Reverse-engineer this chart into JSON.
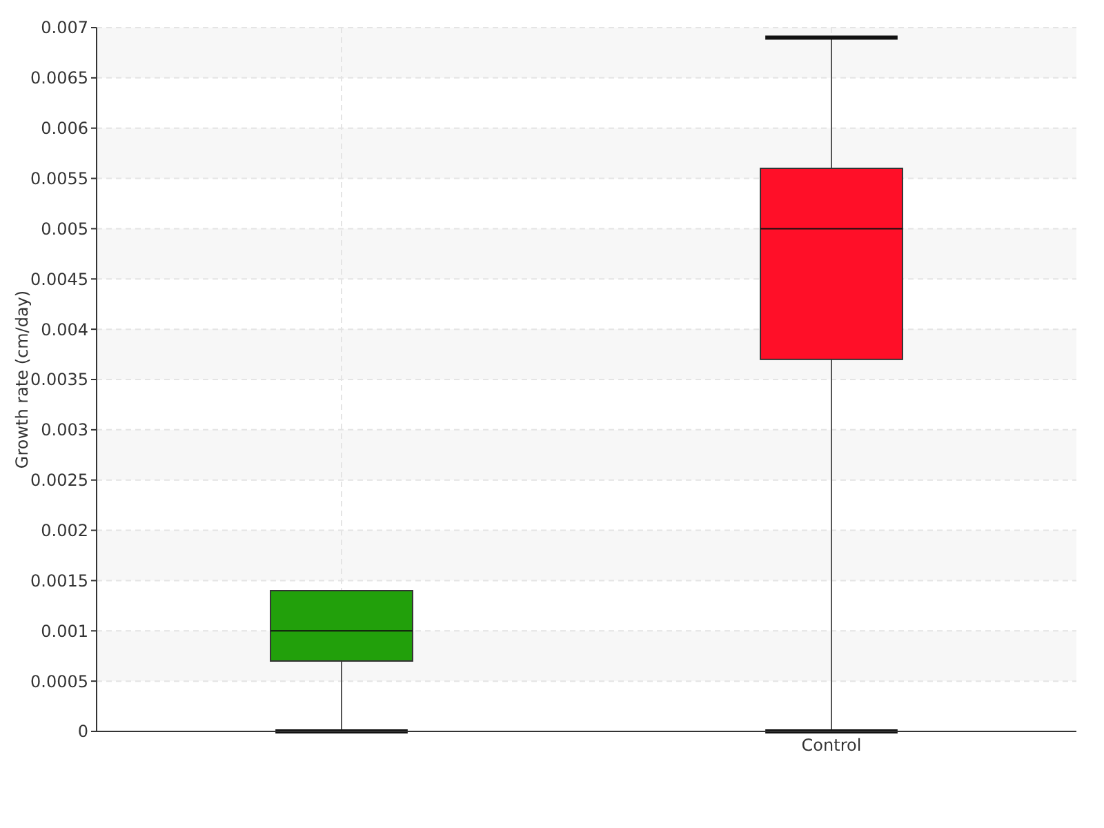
{
  "chart_data": {
    "type": "box",
    "ylabel": "Growth rate (cm/day)",
    "categories": [
      null,
      "Control"
    ],
    "colors": [
      "#22a00b",
      "#ff0f28"
    ],
    "boxes": [
      {
        "low": 0,
        "q1": 0.0007,
        "median": 0.001,
        "q3": 0.0014,
        "high": 0.0014
      },
      {
        "low": 0,
        "q1": 0.0037,
        "median": 0.005,
        "q3": 0.0056,
        "high": 0.0069
      }
    ],
    "ylim": [
      0,
      0.007
    ],
    "yticks": [
      0,
      0.0005,
      0.001,
      0.0015,
      0.002,
      0.0025,
      0.003,
      0.0035,
      0.004,
      0.0045,
      0.005,
      0.0055,
      0.006,
      0.0065,
      0.007
    ],
    "grid": true
  }
}
